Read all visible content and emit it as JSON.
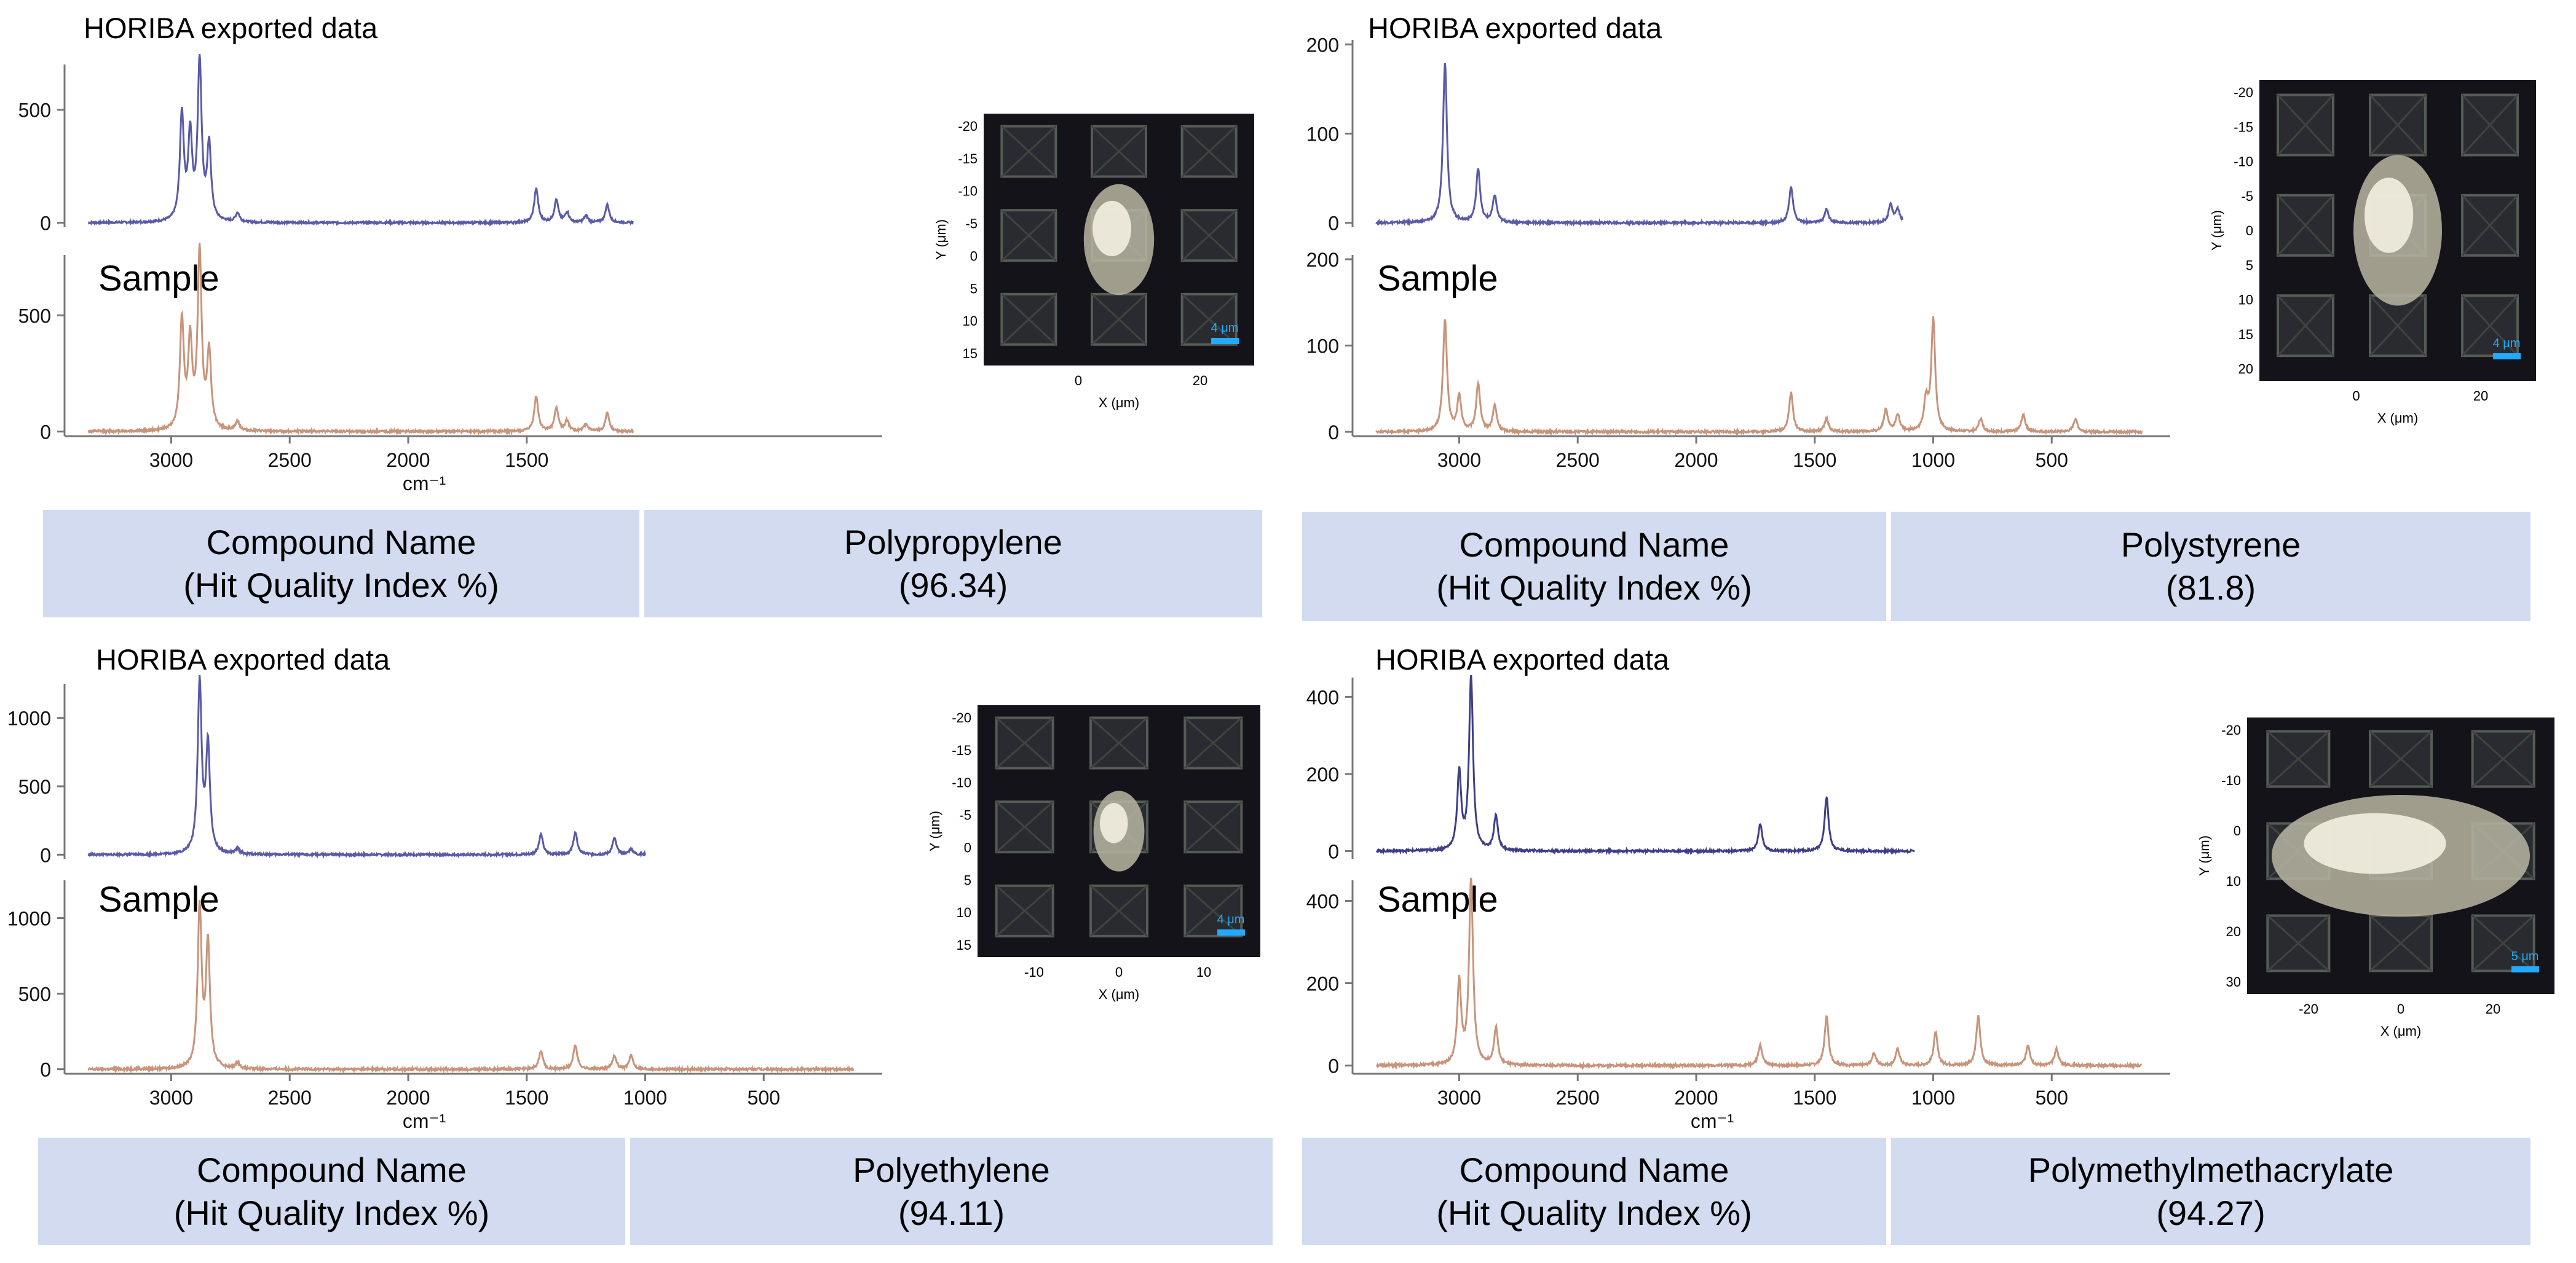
{
  "panels": [
    {
      "id": "pp",
      "header": "HORIBA  exported data",
      "sample_label": "Sample",
      "compound_label": [
        "Compound Name",
        "(Hit Quality Index %)"
      ],
      "result_name": "Polypropylene",
      "result_hqi": "(96.34)",
      "map": {
        "y_ticks": [
          "-20",
          "-15",
          "-10",
          "-5",
          "0",
          "5",
          "10",
          "15"
        ],
        "x_ticks": [
          "0",
          "20"
        ],
        "x_label": "X (μm)",
        "y_label": "Y (μm)",
        "scalebar": "4 μm"
      }
    },
    {
      "id": "ps",
      "header": "HORIBA  exported data",
      "sample_label": "Sample",
      "compound_label": [
        "Compound Name",
        "(Hit Quality Index %)"
      ],
      "result_name": "Polystyrene",
      "result_hqi": "(81.8)",
      "map": {
        "y_ticks": [
          "-20",
          "-15",
          "-10",
          "-5",
          "0",
          "5",
          "10",
          "15",
          "20"
        ],
        "x_ticks": [
          "0",
          "20"
        ],
        "x_label": "X (μm)",
        "y_label": "Y (μm)",
        "scalebar": "4 μm"
      }
    },
    {
      "id": "pe",
      "header": "HORIBA  exported data",
      "sample_label": "Sample",
      "compound_label": [
        "Compound Name",
        "(Hit Quality Index %)"
      ],
      "result_name": "Polyethylene",
      "result_hqi": "(94.11)",
      "map": {
        "y_ticks": [
          "-20",
          "-15",
          "-10",
          "-5",
          "0",
          "5",
          "10",
          "15"
        ],
        "x_ticks": [
          "-10",
          "0",
          "10"
        ],
        "x_label": "X (μm)",
        "y_label": "Y (μm)",
        "scalebar": "4 μm"
      }
    },
    {
      "id": "pmma",
      "header": "HORIBA  exported data",
      "sample_label": "Sample",
      "compound_label": [
        "Compound Name",
        "(Hit Quality Index %)"
      ],
      "result_name": "Polymethylmethacrylate",
      "result_hqi": "(94.27)",
      "map": {
        "y_ticks": [
          "-20",
          "-10",
          "0",
          "10",
          "20",
          "30"
        ],
        "x_ticks": [
          "-20",
          "0",
          "20"
        ],
        "x_label": "X (μm)",
        "y_label": "Y (μm)",
        "scalebar": "5 μm"
      }
    }
  ],
  "chart_data": [
    {
      "type": "line",
      "xlabel": "cm⁻¹",
      "xlim": [
        3450,
        0
      ],
      "x_ticks": [
        3000,
        2500,
        2000,
        1500
      ],
      "colors": {
        "reference": "#5a5aa8",
        "sample": "#c8947a"
      },
      "series": [
        {
          "role": "reference",
          "ylim": [
            -20,
            700
          ],
          "y_ticks": [
            0,
            500
          ],
          "peaks": [
            [
              2955,
              470
            ],
            [
              2920,
              370
            ],
            [
              2880,
              700
            ],
            [
              2840,
              330
            ],
            [
              2720,
              40
            ],
            [
              1460,
              150
            ],
            [
              1375,
              100
            ],
            [
              1330,
              45
            ],
            [
              1250,
              30
            ],
            [
              1160,
              80
            ]
          ],
          "x_end": 1050
        },
        {
          "role": "sample",
          "ylim": [
            -20,
            760
          ],
          "y_ticks": [
            0,
            500
          ],
          "peaks": [
            [
              2955,
              470
            ],
            [
              2920,
              370
            ],
            [
              2880,
              760
            ],
            [
              2840,
              330
            ],
            [
              2720,
              40
            ],
            [
              1460,
              150
            ],
            [
              1375,
              100
            ],
            [
              1330,
              45
            ],
            [
              1250,
              30
            ],
            [
              1160,
              80
            ]
          ],
          "x_end": 1050
        }
      ]
    },
    {
      "type": "line",
      "xlabel": "",
      "xlim": [
        3450,
        0
      ],
      "x_ticks": [
        3000,
        2500,
        2000,
        1500,
        1000,
        500
      ],
      "colors": {
        "reference": "#5a5aa8",
        "sample": "#c8947a"
      },
      "series": [
        {
          "role": "reference",
          "ylim": [
            -5,
            205
          ],
          "y_ticks": [
            0,
            100,
            200
          ],
          "peaks": [
            [
              3060,
              180
            ],
            [
              2920,
              60
            ],
            [
              2850,
              30
            ],
            [
              1600,
              40
            ],
            [
              1450,
              15
            ],
            [
              1180,
              20
            ],
            [
              1150,
              15
            ]
          ],
          "x_end": 1130
        },
        {
          "role": "sample",
          "ylim": [
            -5,
            205
          ],
          "y_ticks": [
            0,
            100,
            200
          ],
          "peaks": [
            [
              3060,
              130
            ],
            [
              3000,
              40
            ],
            [
              2920,
              55
            ],
            [
              2850,
              30
            ],
            [
              1600,
              45
            ],
            [
              1450,
              15
            ],
            [
              1200,
              25
            ],
            [
              1150,
              20
            ],
            [
              1030,
              35
            ],
            [
              1000,
              130
            ],
            [
              800,
              15
            ],
            [
              620,
              20
            ],
            [
              400,
              15
            ]
          ],
          "x_end": 120
        }
      ]
    },
    {
      "type": "line",
      "xlabel": "cm⁻¹",
      "xlim": [
        3450,
        0
      ],
      "x_ticks": [
        3000,
        2500,
        2000,
        1500,
        1000,
        500
      ],
      "colors": {
        "reference": "#5a5aa8",
        "sample": "#c8947a"
      },
      "series": [
        {
          "role": "reference",
          "ylim": [
            -30,
            1250
          ],
          "y_ticks": [
            0,
            500,
            1000
          ],
          "peaks": [
            [
              2880,
              1250
            ],
            [
              2845,
              780
            ],
            [
              2720,
              40
            ],
            [
              1440,
              150
            ],
            [
              1295,
              160
            ],
            [
              1130,
              120
            ],
            [
              1060,
              40
            ]
          ],
          "x_end": 1000
        },
        {
          "role": "sample",
          "ylim": [
            -30,
            1250
          ],
          "y_ticks": [
            0,
            500,
            1000
          ],
          "peaks": [
            [
              2880,
              1060
            ],
            [
              2845,
              820
            ],
            [
              2720,
              40
            ],
            [
              1440,
              120
            ],
            [
              1295,
              160
            ],
            [
              1130,
              90
            ],
            [
              1060,
              90
            ]
          ],
          "x_end": 120
        }
      ]
    },
    {
      "type": "line",
      "xlabel": "cm⁻¹",
      "xlim": [
        3450,
        0
      ],
      "x_ticks": [
        3000,
        2500,
        2000,
        1500,
        1000,
        500
      ],
      "colors": {
        "reference": "#3e3e88",
        "sample": "#c8947a"
      },
      "series": [
        {
          "role": "reference",
          "ylim": [
            -20,
            450
          ],
          "y_ticks": [
            0,
            200,
            400
          ],
          "peaks": [
            [
              3000,
              200
            ],
            [
              2950,
              450
            ],
            [
              2845,
              90
            ],
            [
              1730,
              70
            ],
            [
              1450,
              140
            ]
          ],
          "x_end": 1080
        },
        {
          "role": "sample",
          "ylim": [
            -20,
            450
          ],
          "y_ticks": [
            0,
            200,
            400
          ],
          "peaks": [
            [
              3000,
              200
            ],
            [
              2950,
              450
            ],
            [
              2845,
              90
            ],
            [
              1730,
              50
            ],
            [
              1450,
              120
            ],
            [
              1250,
              30
            ],
            [
              1150,
              40
            ],
            [
              990,
              80
            ],
            [
              810,
              120
            ],
            [
              600,
              50
            ],
            [
              480,
              40
            ]
          ],
          "x_end": 120
        }
      ]
    }
  ]
}
